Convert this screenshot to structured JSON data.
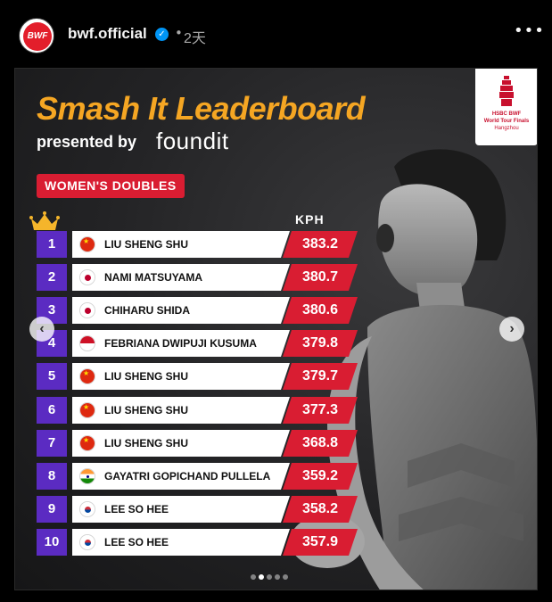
{
  "post": {
    "username": "bwf.official",
    "verified_mark": "✓",
    "separator": "•",
    "time": "2天",
    "more_label": "•••",
    "avatar_text": "BWF"
  },
  "graphic": {
    "title": "Smash It Leaderboard",
    "presented_by": "presented by",
    "sponsor": "foundit",
    "event": {
      "line1": "HSBC BWF",
      "line2": "World Tour Finals",
      "line3": "Hangzhou"
    },
    "category": "WOMEN'S DOUBLES",
    "unit_header": "KPH",
    "crown_icon": "crown-icon",
    "colors": {
      "title": "#f5a623",
      "rank_bg": "#5b2bc2",
      "speed_bg": "#d91d32",
      "category_bg": "#d91d32"
    }
  },
  "leaderboard": [
    {
      "rank": "1",
      "name": "LIU SHENG SHU",
      "country": "CHN",
      "kph": "383.2"
    },
    {
      "rank": "2",
      "name": "NAMI MATSUYAMA",
      "country": "JPN",
      "kph": "380.7"
    },
    {
      "rank": "3",
      "name": "CHIHARU SHIDA",
      "country": "JPN",
      "kph": "380.6"
    },
    {
      "rank": "4",
      "name": "FEBRIANA DWIPUJI KUSUMA",
      "country": "INA",
      "kph": "379.8"
    },
    {
      "rank": "5",
      "name": "LIU SHENG SHU",
      "country": "CHN",
      "kph": "379.7"
    },
    {
      "rank": "6",
      "name": "LIU SHENG SHU",
      "country": "CHN",
      "kph": "377.3"
    },
    {
      "rank": "7",
      "name": "LIU SHENG SHU",
      "country": "CHN",
      "kph": "368.8"
    },
    {
      "rank": "8",
      "name": "GAYATRI GOPICHAND PULLELA",
      "country": "IND",
      "kph": "359.2"
    },
    {
      "rank": "9",
      "name": "LEE SO HEE",
      "country": "KOR",
      "kph": "358.2"
    },
    {
      "rank": "10",
      "name": "LEE SO HEE",
      "country": "KOR",
      "kph": "357.9"
    }
  ],
  "carousel": {
    "prev_label": "‹",
    "next_label": "›",
    "total_slides": 5,
    "active_slide": 2
  }
}
